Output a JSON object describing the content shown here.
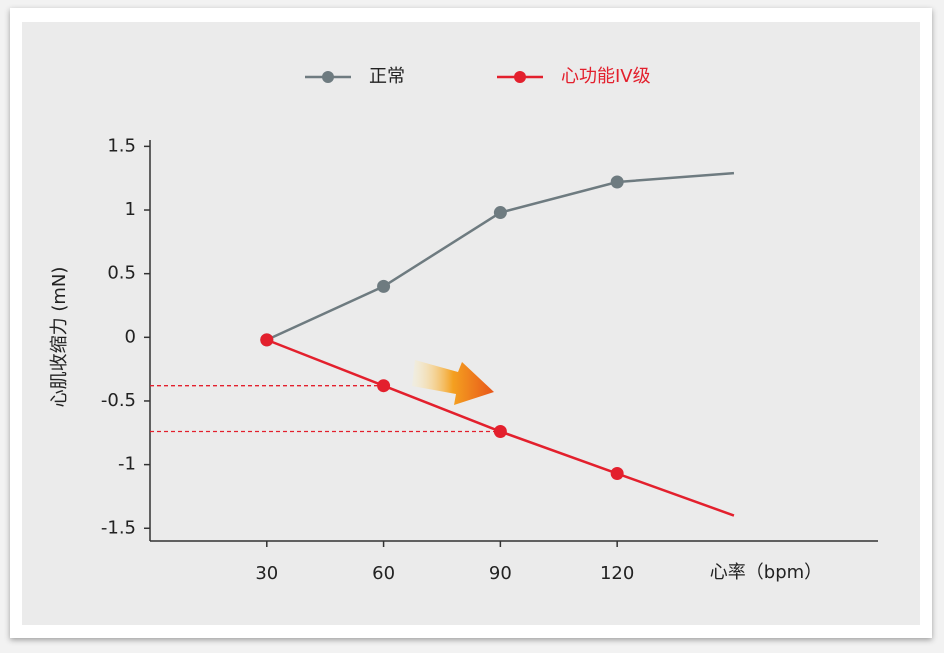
{
  "chart_data": {
    "type": "line",
    "x_label": "心率（bpm）",
    "y_label": "心肌收缩力 (mN)",
    "x": [
      30,
      60,
      90,
      120,
      150
    ],
    "series": [
      {
        "name": "正常",
        "color": "#6e7b80",
        "values": [
          -0.02,
          0.4,
          0.98,
          1.22,
          1.29
        ]
      },
      {
        "name": "心功能IV级",
        "color": "#e3202d",
        "values": [
          -0.02,
          -0.38,
          -0.74,
          -1.07,
          -1.4
        ],
        "guides_at_x": [
          60,
          90
        ]
      }
    ],
    "xlim": [
      0,
      187
    ],
    "ylim": [
      -1.6,
      1.55
    ],
    "xticks": [
      30,
      60,
      90,
      120
    ],
    "yticks": [
      1.5,
      1,
      0.5,
      0,
      -0.5,
      -1,
      -1.5
    ],
    "legend": "top"
  }
}
